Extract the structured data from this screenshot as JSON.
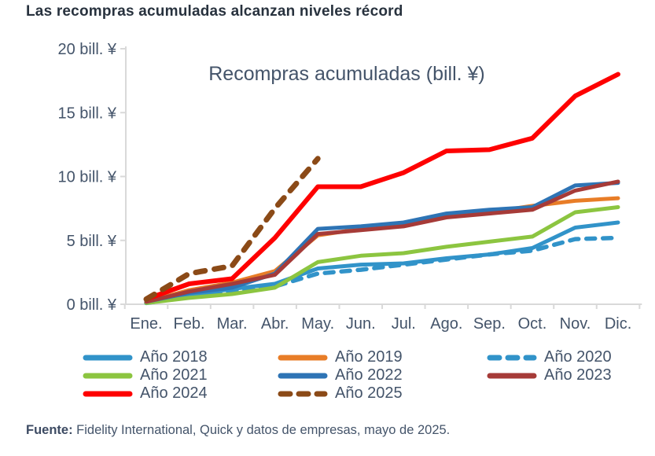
{
  "header": {
    "title": "Las recompras acumuladas alcanzan niveles récord"
  },
  "source": {
    "label": "Fuente:",
    "text": " Fidelity International, Quick y datos de empresas, mayo de 2025."
  },
  "colors": {
    "axis": "#D9D9D9",
    "text": "#44546A",
    "heading": "#28323E"
  },
  "chart_data": {
    "type": "line",
    "title": "Recompras acumuladas (bill. ¥)",
    "xlabel": "",
    "ylabel": "bill. ¥",
    "ylim": [
      0,
      20
    ],
    "grid": false,
    "legend_position": "bottom",
    "categories": [
      "Ene.",
      "Feb.",
      "Mar.",
      "Abr.",
      "May.",
      "Jun.",
      "Jul.",
      "Ago.",
      "Sep.",
      "Oct.",
      "Nov.",
      "Dic."
    ],
    "y_ticks": [
      {
        "value": 0,
        "label": "0 bill. ¥"
      },
      {
        "value": 5,
        "label": "5 bill. ¥"
      },
      {
        "value": 10,
        "label": "10 bill. ¥"
      },
      {
        "value": 15,
        "label": "15 bill. ¥"
      },
      {
        "value": 20,
        "label": "20 bill. ¥"
      }
    ],
    "series": [
      {
        "name": "Año 2018",
        "year": "2018",
        "color": "#3193C9",
        "dashed": false,
        "width": 5,
        "values": [
          0.2,
          0.7,
          1.2,
          1.6,
          2.8,
          3.1,
          3.2,
          3.6,
          3.9,
          4.4,
          6.0,
          6.4
        ]
      },
      {
        "name": "Año 2019",
        "year": "2019",
        "color": "#E87D27",
        "dashed": false,
        "width": 5,
        "values": [
          0.2,
          1.1,
          1.7,
          2.6,
          5.4,
          5.9,
          6.2,
          6.9,
          7.2,
          7.7,
          8.1,
          8.3
        ]
      },
      {
        "name": "Año 2020",
        "year": "2020",
        "color": "#3193C9",
        "dashed": true,
        "width": 5.5,
        "values": [
          0.1,
          0.6,
          1.0,
          1.4,
          2.4,
          2.7,
          3.1,
          3.5,
          3.9,
          4.2,
          5.1,
          5.2
        ]
      },
      {
        "name": "Año 2021",
        "year": "2021",
        "color": "#8CC540",
        "dashed": false,
        "width": 5,
        "values": [
          0.1,
          0.5,
          0.8,
          1.3,
          3.3,
          3.8,
          4.0,
          4.5,
          4.9,
          5.3,
          7.2,
          7.6
        ]
      },
      {
        "name": "Año 2022",
        "year": "2022",
        "color": "#2E74B5",
        "dashed": false,
        "width": 5,
        "values": [
          0.2,
          0.9,
          1.3,
          2.4,
          5.9,
          6.1,
          6.4,
          7.1,
          7.4,
          7.6,
          9.3,
          9.5
        ]
      },
      {
        "name": "Año 2023",
        "year": "2023",
        "color": "#A63B38",
        "dashed": false,
        "width": 5,
        "values": [
          0.2,
          1.0,
          1.6,
          2.3,
          5.5,
          5.8,
          6.1,
          6.8,
          7.1,
          7.4,
          8.9,
          9.6
        ]
      },
      {
        "name": "Año 2024",
        "year": "2024",
        "color": "#FE0000",
        "dashed": false,
        "width": 6,
        "values": [
          0.4,
          1.6,
          2.0,
          5.2,
          9.2,
          9.2,
          10.3,
          12.0,
          12.1,
          13.0,
          16.3,
          18.0
        ]
      },
      {
        "name": "Año 2025",
        "year": "2025",
        "color": "#8B4A17",
        "dashed": true,
        "width": 7,
        "values": [
          0.4,
          2.4,
          3.0,
          7.5,
          11.4,
          null,
          null,
          null,
          null,
          null,
          null,
          null
        ]
      }
    ]
  }
}
